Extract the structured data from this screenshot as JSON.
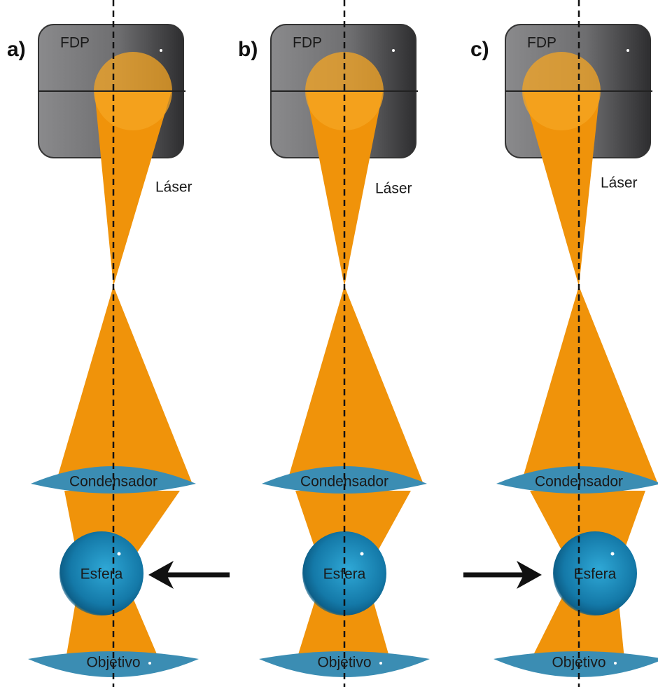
{
  "panels": [
    {
      "label": "a)",
      "fdp": "FDP",
      "laser": "Láser",
      "condenser": "Condensador",
      "sphere": "Esfera",
      "objective": "Objetivo"
    },
    {
      "label": "b)",
      "fdp": "FDP",
      "laser": "Láser",
      "condenser": "Condensador",
      "sphere": "Esfera",
      "objective": "Objetivo"
    },
    {
      "label": "c)",
      "fdp": "FDP",
      "laser": "Láser",
      "condenser": "Condensador",
      "sphere": "Esfera",
      "objective": "Objetivo"
    }
  ]
}
